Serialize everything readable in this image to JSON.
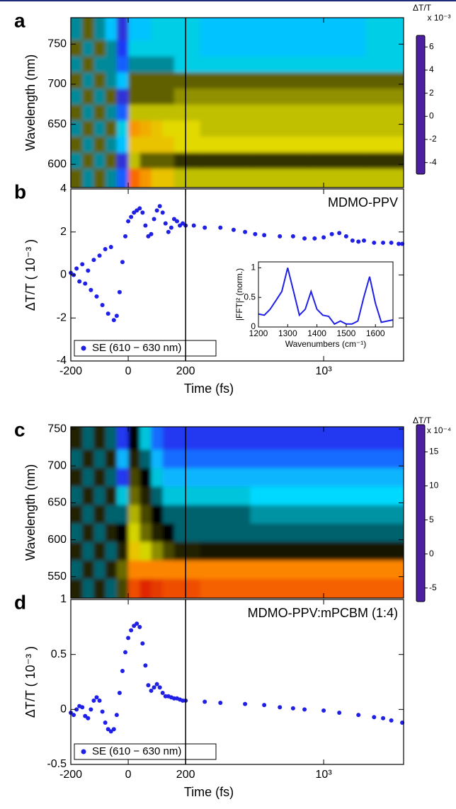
{
  "chart_data": [
    {
      "type": "heatmap",
      "label": "a",
      "ylabel": "Wavelength (nm)",
      "x": [
        -180,
        -140,
        -100,
        -60,
        -20,
        20,
        60,
        100,
        140,
        180,
        300,
        600,
        1200,
        2200
      ],
      "y": [
        585,
        605,
        625,
        645,
        665,
        685,
        705,
        725,
        745,
        765
      ],
      "z": [
        [
          1,
          -1,
          1,
          -1,
          -3,
          5,
          4,
          3,
          3,
          2,
          2,
          2,
          2,
          2
        ],
        [
          -1,
          1,
          -1,
          1,
          -4,
          2,
          1,
          1,
          1,
          0.5,
          0.5,
          0.5,
          0.5,
          0.5
        ],
        [
          1,
          -1,
          1,
          -1,
          -2,
          3,
          3,
          3,
          3,
          2.5,
          2.5,
          2.5,
          2.5,
          2.5
        ],
        [
          -1,
          1,
          -1,
          1,
          -1.5,
          4,
          3.5,
          3,
          2.5,
          2.5,
          2,
          2,
          2,
          2
        ],
        [
          1,
          -1,
          1,
          -1,
          -3,
          2,
          2,
          2,
          2,
          2,
          2,
          2,
          2,
          2
        ],
        [
          -1,
          1,
          -1,
          1,
          -4,
          1,
          1,
          1,
          1,
          1.5,
          1.5,
          1.5,
          1.5,
          1.5
        ],
        [
          1,
          -1,
          1,
          -1,
          -2,
          1,
          1,
          1,
          1,
          1,
          1,
          1,
          1,
          1
        ],
        [
          -1,
          1,
          -1,
          -1,
          -3,
          -1,
          -1,
          -1,
          -1,
          -1.5,
          -1.5,
          -1.5,
          -1.5,
          -1.5
        ],
        [
          1,
          -1,
          1,
          -1,
          -3.5,
          -1.5,
          -1.5,
          -1.5,
          -1.5,
          -1.5,
          -2,
          -2,
          -2,
          -1.5
        ],
        [
          -1,
          1,
          -1,
          -2,
          -4,
          -2,
          -2,
          -1.5,
          -1.5,
          -1.5,
          -2,
          -2,
          -2,
          -1.5
        ]
      ],
      "ylim": [
        571,
        783
      ],
      "yticks": [
        600,
        650,
        700,
        750
      ],
      "xlim": [
        -200,
        2540
      ],
      "xbreak": 200,
      "xscale": "linear-log",
      "xticks": [
        -200,
        0,
        200,
        1000
      ],
      "colorbar": {
        "label": "ΔT/T",
        "exponent": "x 10⁻³",
        "lim": [
          -5,
          7
        ],
        "ticks": [
          -4,
          -2,
          0,
          2,
          4,
          6
        ],
        "colors": [
          "#4b1fa0",
          "#1a3cff",
          "#00e5ff",
          "#000000",
          "#e0e000",
          "#ff7a00",
          "#d00000"
        ]
      }
    },
    {
      "type": "scatter",
      "label": "b",
      "annotation": "MDMO-PPV",
      "ylabel": "ΔT/T ( 10⁻³ )",
      "xlabel": "Time (fs)",
      "x": [
        -200,
        -190,
        -180,
        -170,
        -160,
        -150,
        -140,
        -130,
        -120,
        -110,
        -100,
        -90,
        -80,
        -70,
        -60,
        -50,
        -40,
        -30,
        -20,
        -10,
        0,
        10,
        20,
        30,
        40,
        50,
        60,
        70,
        80,
        90,
        100,
        110,
        120,
        130,
        140,
        150,
        160,
        170,
        180,
        190,
        200,
        220,
        250,
        300,
        350,
        400,
        450,
        500,
        600,
        700,
        800,
        900,
        1000,
        1100,
        1200,
        1300,
        1400,
        1500,
        1600,
        1800,
        2000,
        2200,
        2400,
        2500
      ],
      "series": [
        {
          "name": "SE (610 − 630 nm)",
          "color": "#1f1fe6",
          "values": [
            0.1,
            0,
            0.3,
            -0.3,
            0.5,
            -0.4,
            0.2,
            -0.7,
            0.7,
            -1,
            0.9,
            -1.4,
            1.2,
            -1.8,
            1.3,
            -2.1,
            -1.9,
            -0.8,
            0.6,
            1.8,
            2.5,
            2.7,
            2.9,
            3.0,
            3.1,
            2.9,
            2.3,
            1.8,
            1.9,
            2.6,
            3.0,
            3.2,
            2.9,
            2.4,
            2.0,
            2.2,
            2.6,
            2.5,
            2.3,
            2.4,
            2.3,
            2.3,
            2.2,
            2.2,
            2.1,
            2.0,
            1.9,
            1.85,
            1.8,
            1.8,
            1.7,
            1.7,
            1.75,
            1.9,
            1.95,
            1.8,
            1.6,
            1.55,
            1.6,
            1.5,
            1.5,
            1.5,
            1.45,
            1.45
          ]
        }
      ],
      "ylim": [
        -4,
        4
      ],
      "yticks": [
        -4,
        -2,
        0,
        2,
        4
      ],
      "xlim": [
        -200,
        2540
      ],
      "xbreak": 200,
      "xscale": "linear-log",
      "xticks": [
        -200,
        0,
        200,
        {
          "value": 1000,
          "label": "10³"
        }
      ],
      "legend": "lower left",
      "inset": {
        "type": "line",
        "color": "#1f1fe6",
        "xlabel": "Wavenumbers (cm⁻¹)",
        "ylabel": "|FFT|² (norm.)",
        "x": [
          1200,
          1220,
          1240,
          1260,
          1280,
          1300,
          1320,
          1340,
          1360,
          1380,
          1400,
          1420,
          1440,
          1460,
          1480,
          1500,
          1520,
          1540,
          1560,
          1580,
          1600,
          1620,
          1640,
          1660
        ],
        "values": [
          0.22,
          0.2,
          0.3,
          0.45,
          0.6,
          1.0,
          0.6,
          0.2,
          0.3,
          0.6,
          0.3,
          0.2,
          0.18,
          0.05,
          0.1,
          0.05,
          0.05,
          0.1,
          0.5,
          0.85,
          0.4,
          0.08,
          0.1,
          0.12
        ],
        "xlim": [
          1200,
          1660
        ],
        "ylim": [
          0,
          1.1
        ],
        "xticks": [
          1200,
          1300,
          1400,
          1500,
          1600
        ],
        "yticks": [
          0,
          0.5,
          1
        ]
      }
    },
    {
      "type": "heatmap",
      "label": "c",
      "ylabel": "Wavelength (nm)",
      "x": [
        -180,
        -140,
        -100,
        -60,
        -20,
        20,
        60,
        100,
        140,
        180,
        300,
        600,
        1200,
        2200
      ],
      "y": [
        535,
        560,
        585,
        610,
        635,
        660,
        685,
        710,
        735
      ],
      "z": [
        [
          1,
          -1,
          1,
          -1,
          2,
          15,
          17,
          16,
          15,
          15,
          14,
          14,
          14,
          14
        ],
        [
          -1,
          1,
          -1,
          1,
          3,
          12,
          12,
          12,
          12,
          12,
          12,
          12,
          12,
          12
        ],
        [
          1,
          -1,
          1,
          -1,
          1,
          8,
          6,
          4,
          2,
          1,
          0.5,
          0.5,
          0.5,
          0.5
        ],
        [
          -1,
          1,
          -1,
          1,
          0,
          6,
          3,
          1,
          0,
          -1,
          -1,
          -1,
          -1,
          -1
        ],
        [
          1,
          -1,
          1,
          -1,
          -1,
          5,
          2,
          0,
          -1,
          -1,
          -1,
          -1.5,
          -1.5,
          -1.5
        ],
        [
          -1,
          1,
          -1,
          1,
          -2,
          3,
          1,
          -1,
          -2,
          -2,
          -2,
          -2.5,
          -2.5,
          -2.5
        ],
        [
          1,
          -1,
          1,
          -1,
          -5,
          2,
          0,
          -2,
          -3,
          -3,
          -3,
          -3,
          -3,
          -3
        ],
        [
          -1,
          1,
          -1,
          1,
          -3,
          1,
          -1,
          -3,
          -4,
          -4,
          -4,
          -4,
          -4,
          -4
        ],
        [
          1,
          -1,
          1,
          -1,
          -5,
          0,
          -2,
          -4,
          -5,
          -5,
          -5,
          -5,
          -5,
          -5
        ]
      ],
      "ylim": [
        521,
        753
      ],
      "yticks": [
        550,
        600,
        650,
        700,
        750
      ],
      "xlim": [
        -200,
        2540
      ],
      "xbreak": 200,
      "xscale": "linear-log",
      "xticks": [
        -200,
        0,
        200,
        1000
      ],
      "colorbar": {
        "label": "ΔT/T",
        "exponent": "x 10⁻⁴",
        "lim": [
          -7,
          19
        ],
        "ticks": [
          -5,
          0,
          5,
          10,
          15
        ],
        "colors": [
          "#4b1fa0",
          "#1a3cff",
          "#00e5ff",
          "#000000",
          "#e0e000",
          "#ff7a00",
          "#d00000"
        ]
      }
    },
    {
      "type": "scatter",
      "label": "d",
      "annotation": "MDMO-PPV:mPCBM (1:4)",
      "ylabel": "ΔT/T ( 10⁻³ )",
      "xlabel": "Time (fs)",
      "x": [
        -200,
        -190,
        -180,
        -170,
        -160,
        -150,
        -140,
        -130,
        -120,
        -110,
        -100,
        -90,
        -80,
        -70,
        -60,
        -50,
        -40,
        -30,
        -20,
        -10,
        0,
        10,
        20,
        30,
        40,
        50,
        60,
        70,
        80,
        90,
        100,
        110,
        120,
        130,
        140,
        150,
        160,
        170,
        180,
        190,
        200,
        250,
        300,
        400,
        500,
        600,
        700,
        800,
        1000,
        1200,
        1500,
        1800,
        2000,
        2200,
        2500
      ],
      "series": [
        {
          "name": "SE (610 − 630 nm)",
          "color": "#1f1fe6",
          "values": [
            -0.03,
            -0.05,
            0,
            0.03,
            0.02,
            -0.06,
            -0.08,
            0,
            0.08,
            0.11,
            0.08,
            -0.02,
            -0.12,
            -0.18,
            -0.2,
            -0.18,
            -0.05,
            0.15,
            0.35,
            0.52,
            0.65,
            0.72,
            0.76,
            0.78,
            0.75,
            0.6,
            0.4,
            0.22,
            0.17,
            0.2,
            0.23,
            0.2,
            0.15,
            0.12,
            0.12,
            0.11,
            0.1,
            0.1,
            0.09,
            0.08,
            0.08,
            0.07,
            0.06,
            0.05,
            0.04,
            0.02,
            0.01,
            0,
            -0.01,
            -0.03,
            -0.05,
            -0.07,
            -0.08,
            -0.1,
            -0.12
          ]
        }
      ],
      "ylim": [
        -0.5,
        1
      ],
      "yticks": [
        -0.5,
        0,
        0.5,
        1
      ],
      "xlim": [
        -200,
        2540
      ],
      "xbreak": 200,
      "xscale": "linear-log",
      "xticks": [
        -200,
        0,
        200,
        {
          "value": 1000,
          "label": "10³"
        }
      ],
      "legend": "lower left"
    }
  ]
}
